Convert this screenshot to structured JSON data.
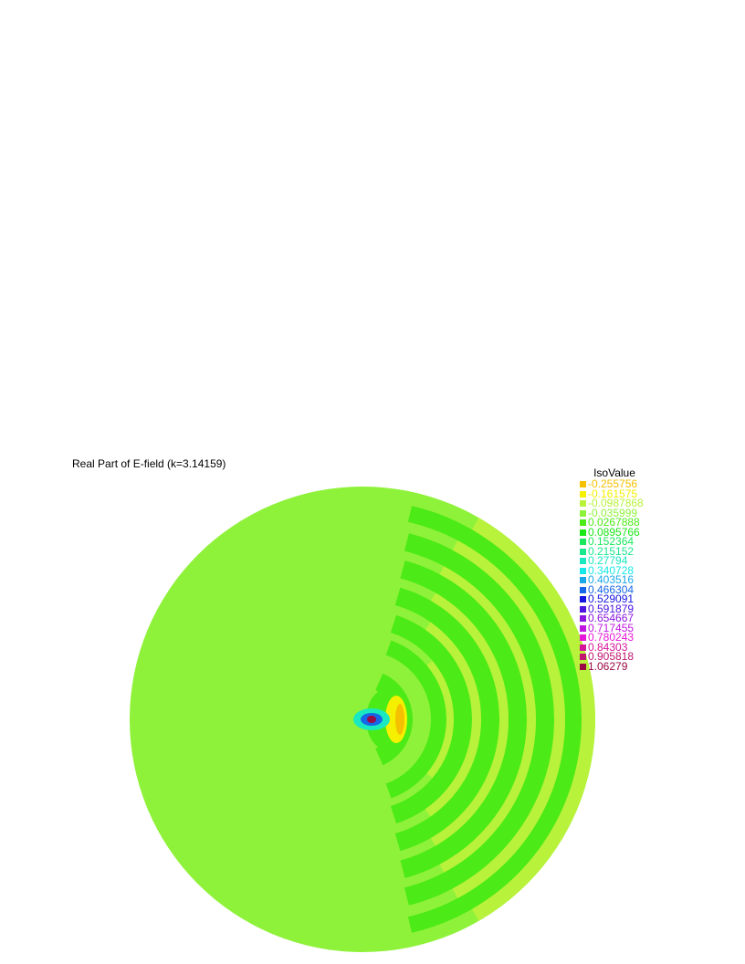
{
  "chart_data": {
    "type": "heatmap",
    "title": "Real Part of E-field (k=3.14159)",
    "legend": {
      "title": "IsoValue",
      "placement": "top-right",
      "entries": [
        {
          "label": "-0.255756",
          "value": -0.255756,
          "color": "#f5c000"
        },
        {
          "label": "-0.161575",
          "value": -0.161575,
          "color": "#f5f000"
        },
        {
          "label": "-0.0987868",
          "value": -0.0987868,
          "color": "#b8f23a"
        },
        {
          "label": "-0.035999",
          "value": -0.035999,
          "color": "#8ff23a"
        },
        {
          "label": "0.0267888",
          "value": 0.0267888,
          "color": "#4cea16"
        },
        {
          "label": "0.0895766",
          "value": 0.0895766,
          "color": "#1ae816"
        },
        {
          "label": "0.152364",
          "value": 0.152364,
          "color": "#1ae85a"
        },
        {
          "label": "0.215152",
          "value": 0.215152,
          "color": "#1ae88f"
        },
        {
          "label": "0.27794",
          "value": 0.27794,
          "color": "#1ae8c0"
        },
        {
          "label": "0.340728",
          "value": 0.340728,
          "color": "#16e8e8"
        },
        {
          "label": "0.403516",
          "value": 0.403516,
          "color": "#1aa8e8"
        },
        {
          "label": "0.466304",
          "value": 0.466304,
          "color": "#1666e8"
        },
        {
          "label": "0.529091",
          "value": 0.529091,
          "color": "#1616e0"
        },
        {
          "label": "0.591879",
          "value": 0.591879,
          "color": "#4c16e0"
        },
        {
          "label": "0.654667",
          "value": 0.654667,
          "color": "#8a16e0"
        },
        {
          "label": "0.717455",
          "value": 0.717455,
          "color": "#c016e0"
        },
        {
          "label": "0.780243",
          "value": 0.780243,
          "color": "#e816d8"
        },
        {
          "label": "0.84303",
          "value": 0.84303,
          "color": "#d6169a"
        },
        {
          "label": "0.905818",
          "value": 0.905818,
          "color": "#c01670"
        },
        {
          "label": "1.06279",
          "value": 1.06279,
          "color": "#9a0a44"
        }
      ]
    },
    "domain": "disk",
    "background_value": -0.035999,
    "source_value": 1.06279
  }
}
